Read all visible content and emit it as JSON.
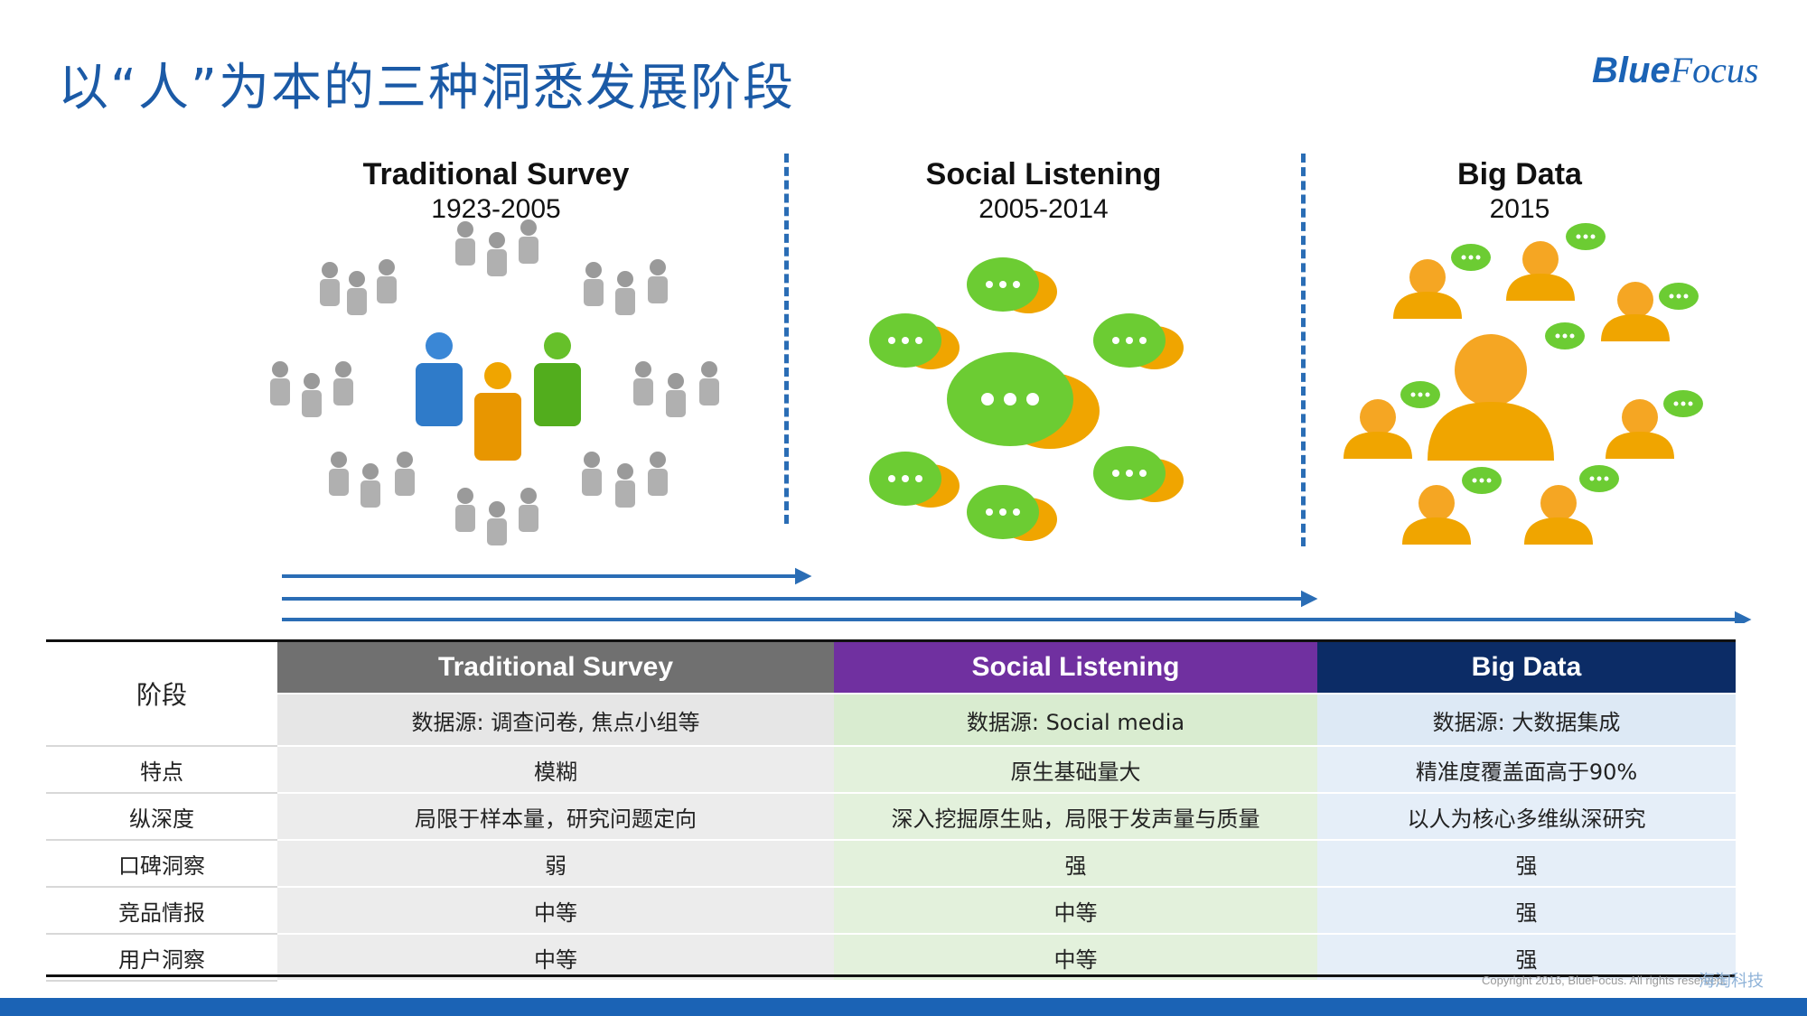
{
  "title": "以“人”为本的三种洞悉发展阶段",
  "logo": {
    "blue": "Blue",
    "focus": "Focus"
  },
  "stages": [
    {
      "name": "Traditional Survey",
      "years": "1923-2005"
    },
    {
      "name": "Social Listening",
      "years": "2005-2014"
    },
    {
      "name": "Big Data",
      "years": "2015"
    }
  ],
  "table": {
    "stage_label": "阶段",
    "headers": [
      "Traditional Survey",
      "Social Listening",
      "Big Data"
    ],
    "sources": [
      "数据源: 调查问卷, 焦点小组等",
      "数据源: Social media",
      "数据源: 大数据集成"
    ],
    "rows": [
      {
        "label": "特点",
        "values": [
          "模糊",
          "原生基础量大",
          "精准度覆盖面高于90%"
        ]
      },
      {
        "label": "纵深度",
        "values": [
          "局限于样本量，研究问题定向",
          "深入挖掘原生贴，局限于发声量与质量",
          "以人为核心多维纵深研究"
        ]
      },
      {
        "label": "口碑洞察",
        "values": [
          "弱",
          "强",
          "强"
        ]
      },
      {
        "label": "竞品情报",
        "values": [
          "中等",
          "中等",
          "强"
        ]
      },
      {
        "label": "用户洞察",
        "values": [
          "中等",
          "中等",
          "强"
        ]
      }
    ]
  },
  "colors": {
    "title": "#1b5aa6",
    "header1": "#707070",
    "header2": "#7030a0",
    "header3": "#0c2c66",
    "accent": "#1b63b5"
  },
  "footer": {
    "copyright": "Copyright 2016, BlueFocus. All rights reserved.",
    "watermark": "海淘科技"
  }
}
